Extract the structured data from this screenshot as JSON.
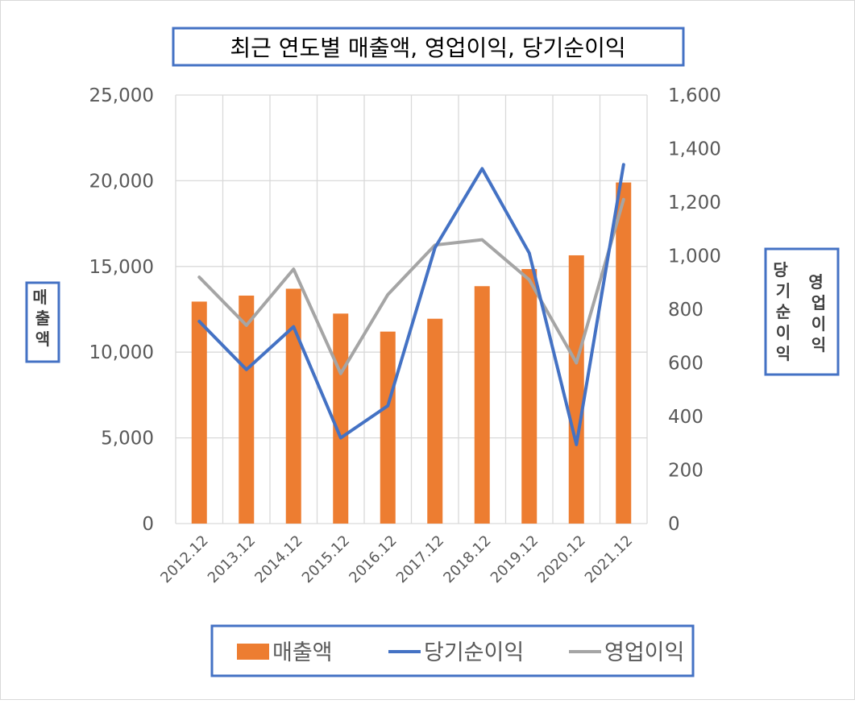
{
  "chart_data": {
    "type": "bar-line-combo",
    "title": "최근 연도별 매출액, 영업이익, 당기순이익",
    "categories": [
      "2012.12",
      "2013.12",
      "2014.12",
      "2015.12",
      "2016.12",
      "2017.12",
      "2018.12",
      "2019.12",
      "2020.12",
      "2021.12"
    ],
    "left_axis": {
      "label": "매출액",
      "ylim": [
        0,
        25000
      ],
      "ticks": [
        "0",
        "5,000",
        "10,000",
        "15,000",
        "20,000",
        "25,000"
      ]
    },
    "right_axis": {
      "label_left_column": "당기순이익",
      "label_right_column": "영업이익",
      "ylim": [
        0,
        1600
      ],
      "ticks": [
        "0",
        "200",
        "400",
        "600",
        "800",
        "1,000",
        "1,200",
        "1,400",
        "1,600"
      ]
    },
    "series": [
      {
        "name": "매출액",
        "type": "bar",
        "axis": "left",
        "color": "#ED7D31",
        "values": [
          12950,
          13300,
          13700,
          12250,
          11200,
          11950,
          13850,
          14850,
          15650,
          19900
        ]
      },
      {
        "name": "당기순이익",
        "type": "line",
        "axis": "right",
        "color": "#4472C4",
        "values": [
          755,
          575,
          735,
          320,
          440,
          1030,
          1325,
          1010,
          295,
          1340
        ]
      },
      {
        "name": "영업이익",
        "type": "line",
        "axis": "right",
        "color": "#A5A5A5",
        "values": [
          920,
          740,
          950,
          560,
          855,
          1040,
          1060,
          910,
          600,
          1210
        ]
      }
    ],
    "grid": true,
    "legend_position": "bottom"
  },
  "colors": {
    "frame_border": "#4472C4",
    "gridline": "#D9D9D9",
    "axis_text": "#595959"
  }
}
